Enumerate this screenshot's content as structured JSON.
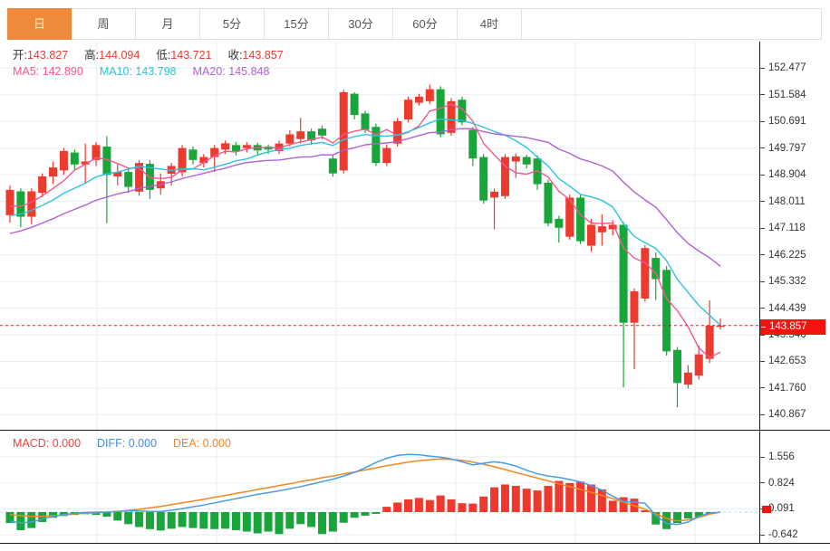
{
  "tabs": {
    "items": [
      {
        "label": "日",
        "active": true
      },
      {
        "label": "周",
        "active": false
      },
      {
        "label": "月",
        "active": false
      },
      {
        "label": "5分",
        "active": false
      },
      {
        "label": "15分",
        "active": false
      },
      {
        "label": "30分",
        "active": false
      },
      {
        "label": "60分",
        "active": false
      },
      {
        "label": "4时",
        "active": false
      }
    ]
  },
  "legend": {
    "ohlc": [
      {
        "label": "开:",
        "value": "143.827"
      },
      {
        "label": "高:",
        "value": "144.094"
      },
      {
        "label": "低:",
        "value": "143.721"
      },
      {
        "label": "收:",
        "value": "143.857"
      }
    ],
    "ma": [
      {
        "label": "MA5:",
        "value": "142.890",
        "color": "#f5578c"
      },
      {
        "label": "MA10:",
        "value": "143.798",
        "color": "#2ec2e0"
      },
      {
        "label": "MA20:",
        "value": "145.848",
        "color": "#b161d2"
      }
    ],
    "macd": [
      {
        "label": "MACD:",
        "value": "0.000",
        "color": "#ea443d"
      },
      {
        "label": "DIFF:",
        "value": "0.000",
        "color": "#3f8fdd"
      },
      {
        "label": "DEA:",
        "value": "0.000",
        "color": "#f5851f"
      }
    ]
  },
  "price_axis": {
    "ticks": [
      "152.477",
      "151.584",
      "150.691",
      "149.797",
      "148.904",
      "148.011",
      "147.118",
      "146.225",
      "145.332",
      "144.439",
      "143.546",
      "142.653",
      "141.760",
      "140.867"
    ]
  },
  "macd_axis": {
    "ticks": [
      "1.556",
      "0.824",
      "0.091",
      "-0.642"
    ]
  },
  "current_price_tag": "143.857",
  "colors": {
    "up": "#ec3a2e",
    "down": "#18a53a",
    "ma5": "#f5578c",
    "ma10": "#2ec2e0",
    "ma20": "#b161d2",
    "diff": "#4a9ce8",
    "dea": "#f5851f",
    "grid": "#e7edf3",
    "zero_dash": "#b9d4ea",
    "price_dash": "#f3140f",
    "tag_bg": "#f3140f",
    "ohlc_value": "#ec3a2e",
    "tab_active_bg": "#ef8a3c"
  },
  "chart_data": {
    "type": "candlestick",
    "timeframe_active": "日",
    "title": "",
    "price_axis_ticks": [
      152.477,
      151.584,
      150.691,
      149.797,
      148.904,
      148.011,
      147.118,
      146.225,
      145.332,
      144.439,
      143.546,
      142.653,
      141.76,
      140.867
    ],
    "macd_axis_ticks": [
      1.556,
      0.824,
      0.091,
      -0.642
    ],
    "ohlc_display": {
      "open": 143.827,
      "high": 144.094,
      "low": 143.721,
      "close": 143.857
    },
    "ma_display": {
      "MA5": 142.89,
      "MA10": 143.798,
      "MA20": 145.848
    },
    "macd_display": {
      "MACD": 0.0,
      "DIFF": 0.0,
      "DEA": 0.0
    },
    "ma_periods": [
      5,
      10,
      20
    ],
    "current_price": 143.857,
    "candles": [
      [
        147.55,
        148.55,
        147.3,
        148.4
      ],
      [
        148.35,
        148.45,
        147.15,
        147.5
      ],
      [
        147.5,
        148.45,
        147.25,
        148.35
      ],
      [
        148.3,
        148.95,
        148.15,
        148.85
      ],
      [
        148.85,
        149.35,
        148.6,
        149.15
      ],
      [
        149.05,
        149.8,
        148.9,
        149.7
      ],
      [
        149.65,
        149.75,
        149.05,
        149.25
      ],
      [
        149.25,
        149.95,
        148.6,
        149.35
      ],
      [
        149.4,
        150.0,
        149.2,
        149.9
      ],
      [
        149.85,
        150.2,
        147.28,
        148.9
      ],
      [
        148.85,
        149.25,
        148.55,
        149.0
      ],
      [
        149.0,
        149.1,
        148.3,
        148.5
      ],
      [
        148.34,
        149.4,
        148.2,
        149.3
      ],
      [
        149.27,
        149.4,
        148.1,
        148.4
      ],
      [
        148.45,
        148.95,
        148.25,
        148.69
      ],
      [
        148.94,
        149.3,
        148.55,
        149.2
      ],
      [
        148.99,
        149.9,
        148.85,
        149.8
      ],
      [
        149.75,
        149.85,
        149.25,
        149.4
      ],
      [
        149.3,
        149.6,
        149.15,
        149.5
      ],
      [
        149.5,
        149.9,
        149.0,
        149.8
      ],
      [
        149.75,
        150.05,
        149.6,
        149.96
      ],
      [
        149.9,
        150.0,
        149.55,
        149.7
      ],
      [
        149.8,
        150.0,
        149.65,
        149.9
      ],
      [
        149.9,
        149.98,
        149.55,
        149.72
      ],
      [
        149.85,
        149.92,
        149.6,
        149.75
      ],
      [
        149.7,
        150.05,
        149.6,
        149.95
      ],
      [
        149.95,
        150.4,
        149.85,
        150.26
      ],
      [
        150.1,
        150.81,
        149.95,
        150.36
      ],
      [
        150.36,
        150.45,
        149.9,
        150.06
      ],
      [
        150.45,
        150.55,
        150.1,
        150.22
      ],
      [
        149.45,
        149.55,
        148.84,
        148.95
      ],
      [
        149.05,
        151.75,
        148.95,
        151.67
      ],
      [
        151.62,
        151.67,
        150.76,
        150.91
      ],
      [
        150.96,
        151.05,
        150.3,
        150.41
      ],
      [
        150.51,
        150.62,
        149.2,
        149.3
      ],
      [
        149.3,
        149.92,
        149.2,
        149.8
      ],
      [
        149.95,
        150.8,
        149.85,
        150.7
      ],
      [
        150.76,
        151.52,
        150.66,
        151.42
      ],
      [
        151.32,
        151.62,
        151.22,
        151.52
      ],
      [
        151.37,
        151.92,
        151.27,
        151.77
      ],
      [
        151.77,
        151.87,
        150.16,
        150.26
      ],
      [
        150.31,
        151.47,
        150.21,
        151.37
      ],
      [
        151.42,
        151.52,
        150.56,
        150.66
      ],
      [
        150.41,
        150.51,
        149.2,
        149.45
      ],
      [
        149.5,
        149.6,
        147.94,
        148.04
      ],
      [
        148.14,
        148.44,
        147.08,
        148.34
      ],
      [
        148.19,
        149.6,
        148.09,
        149.5
      ],
      [
        149.35,
        149.62,
        148.8,
        149.52
      ],
      [
        149.5,
        149.58,
        149.12,
        149.25
      ],
      [
        149.45,
        149.55,
        148.4,
        148.59
      ],
      [
        148.64,
        148.74,
        147.18,
        147.28
      ],
      [
        147.43,
        147.53,
        146.63,
        147.13
      ],
      [
        146.83,
        148.24,
        146.73,
        148.14
      ],
      [
        148.14,
        148.24,
        146.58,
        146.68
      ],
      [
        146.53,
        147.43,
        146.33,
        147.23
      ],
      [
        146.98,
        147.58,
        146.53,
        147.18
      ],
      [
        147.08,
        147.38,
        146.88,
        147.23
      ],
      [
        147.23,
        147.33,
        141.79,
        143.95
      ],
      [
        143.95,
        145.1,
        142.39,
        145.0
      ],
      [
        144.76,
        146.55,
        144.66,
        146.45
      ],
      [
        146.12,
        146.3,
        144.71,
        145.41
      ],
      [
        145.72,
        145.85,
        142.85,
        142.99
      ],
      [
        143.04,
        143.14,
        141.12,
        141.93
      ],
      [
        141.88,
        142.53,
        141.75,
        142.28
      ],
      [
        142.18,
        143.19,
        142.05,
        142.89
      ],
      [
        142.74,
        144.7,
        142.6,
        143.85
      ],
      [
        143.827,
        144.094,
        143.721,
        143.857
      ]
    ],
    "macd": {
      "hist": [
        -0.31,
        -0.51,
        -0.45,
        -0.28,
        -0.16,
        -0.11,
        -0.08,
        -0.06,
        -0.08,
        -0.13,
        -0.24,
        -0.34,
        -0.42,
        -0.48,
        -0.52,
        -0.47,
        -0.42,
        -0.45,
        -0.47,
        -0.48,
        -0.47,
        -0.51,
        -0.55,
        -0.6,
        -0.55,
        -0.62,
        -0.47,
        -0.34,
        -0.42,
        -0.62,
        -0.55,
        -0.3,
        -0.16,
        -0.1,
        -0.05,
        0.15,
        0.27,
        0.36,
        0.4,
        0.34,
        0.47,
        0.36,
        0.25,
        0.24,
        0.44,
        0.7,
        0.78,
        0.74,
        0.66,
        0.61,
        0.74,
        0.88,
        0.82,
        0.86,
        0.78,
        0.64,
        0.32,
        0.42,
        0.38,
        0.05,
        -0.35,
        -0.48,
        -0.31,
        -0.18,
        -0.14,
        -0.05,
        0.0
      ],
      "diff": [
        -0.26,
        -0.3,
        -0.28,
        -0.2,
        -0.12,
        -0.07,
        -0.03,
        -0.01,
        0.0,
        0.0,
        0.02,
        0.03,
        0.03,
        0.02,
        0.02,
        0.05,
        0.1,
        0.15,
        0.2,
        0.26,
        0.32,
        0.38,
        0.44,
        0.5,
        0.55,
        0.6,
        0.66,
        0.72,
        0.79,
        0.86,
        0.93,
        1.02,
        1.12,
        1.25,
        1.4,
        1.52,
        1.6,
        1.63,
        1.62,
        1.58,
        1.55,
        1.5,
        1.42,
        1.33,
        1.38,
        1.42,
        1.38,
        1.3,
        1.18,
        1.08,
        1.02,
        0.98,
        0.92,
        0.85,
        0.75,
        0.62,
        0.45,
        0.3,
        0.28,
        0.25,
        -0.1,
        -0.32,
        -0.35,
        -0.28,
        -0.12,
        -0.03,
        0.0
      ],
      "dea": [
        -0.07,
        -0.1,
        -0.12,
        -0.12,
        -0.1,
        -0.08,
        -0.05,
        -0.03,
        -0.02,
        0.0,
        0.02,
        0.05,
        0.08,
        0.12,
        0.16,
        0.21,
        0.26,
        0.31,
        0.36,
        0.42,
        0.47,
        0.53,
        0.58,
        0.64,
        0.69,
        0.75,
        0.8,
        0.86,
        0.91,
        0.97,
        1.02,
        1.08,
        1.13,
        1.19,
        1.25,
        1.31,
        1.36,
        1.41,
        1.45,
        1.48,
        1.5,
        1.49,
        1.46,
        1.41,
        1.35,
        1.28,
        1.2,
        1.12,
        1.04,
        0.96,
        0.88,
        0.8,
        0.72,
        0.64,
        0.56,
        0.47,
        0.38,
        0.28,
        0.18,
        0.08,
        -0.05,
        -0.18,
        -0.25,
        -0.22,
        -0.15,
        -0.06,
        0.0
      ]
    },
    "layout_hints": {
      "grid": true,
      "price_axis_side": "right",
      "panels": [
        "price+MA",
        "MACD"
      ]
    }
  }
}
